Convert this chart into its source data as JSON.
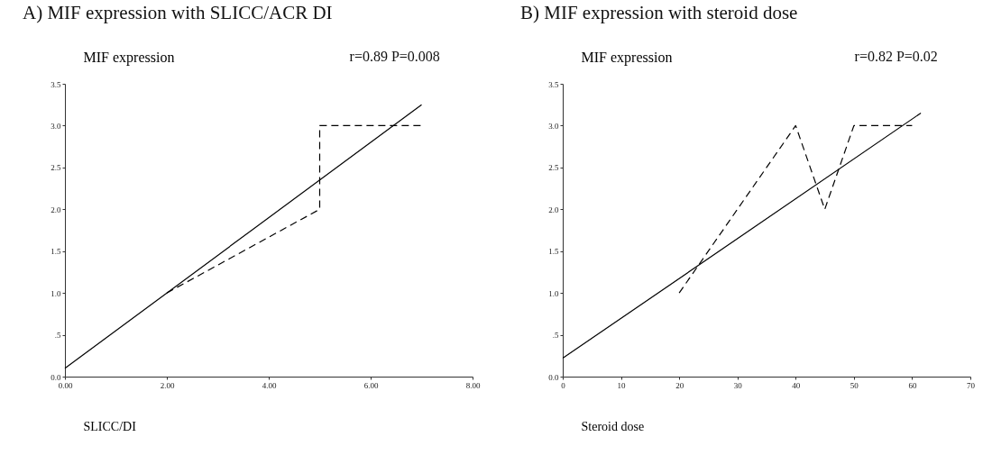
{
  "chart_data": [
    {
      "type": "line",
      "title": "A) MIF expression with SLICC/ACR DI",
      "ylabel": "MIF expression",
      "xlabel": "SLICC/DI",
      "annotations": [
        "r=0.89 P=0.008"
      ],
      "xlim": [
        0,
        8
      ],
      "xticks": [
        {
          "value": 0,
          "label": "0.00"
        },
        {
          "value": 2,
          "label": "2.00"
        },
        {
          "value": 4,
          "label": "4.00"
        },
        {
          "value": 6,
          "label": "6.00"
        },
        {
          "value": 8,
          "label": "8.00"
        }
      ],
      "ylim": [
        0,
        3.5
      ],
      "yticks": [
        {
          "value": 0,
          "label": "0.0"
        },
        {
          "value": 0.5,
          "label": ".5"
        },
        {
          "value": 1,
          "label": "1.0"
        },
        {
          "value": 1.5,
          "label": "1.5"
        },
        {
          "value": 2,
          "label": "2.0"
        },
        {
          "value": 2.5,
          "label": "2.5"
        },
        {
          "value": 3,
          "label": "3.0"
        },
        {
          "value": 3.5,
          "label": "3.5"
        }
      ],
      "series": [
        {
          "x": [
            2,
            5,
            5,
            7
          ],
          "values": [
            1,
            2,
            3,
            3
          ],
          "color": "#000000",
          "line_style": "dashed"
        },
        {
          "x": [
            0,
            7
          ],
          "values": [
            0.1,
            3.25
          ],
          "color": "#000000",
          "line_style": "solid"
        }
      ]
    },
    {
      "type": "line",
      "title": "B) MIF expression with steroid dose",
      "ylabel": "MIF expression",
      "xlabel": "Steroid dose",
      "annotations": [
        "r=0.82 P=0.02"
      ],
      "xlim": [
        0,
        70
      ],
      "xticks": [
        0,
        10,
        20,
        30,
        40,
        50,
        60,
        70
      ],
      "ylim": [
        0,
        3.5
      ],
      "yticks": [
        {
          "value": 0,
          "label": "0.0"
        },
        {
          "value": 0.5,
          "label": ".5"
        },
        {
          "value": 1,
          "label": "1.0"
        },
        {
          "value": 1.5,
          "label": "1.5"
        },
        {
          "value": 2,
          "label": "2.0"
        },
        {
          "value": 2.5,
          "label": "2.5"
        },
        {
          "value": 3,
          "label": "3.0"
        },
        {
          "value": 3.5,
          "label": "3.5"
        }
      ],
      "series": [
        {
          "x": [
            20,
            40,
            45,
            50,
            60
          ],
          "values": [
            1,
            3,
            2,
            3,
            3
          ],
          "color": "#000000",
          "line_style": "dashed"
        },
        {
          "x": [
            0,
            61.5
          ],
          "values": [
            0.22,
            3.15
          ],
          "color": "#000000",
          "line_style": "solid"
        }
      ]
    }
  ]
}
